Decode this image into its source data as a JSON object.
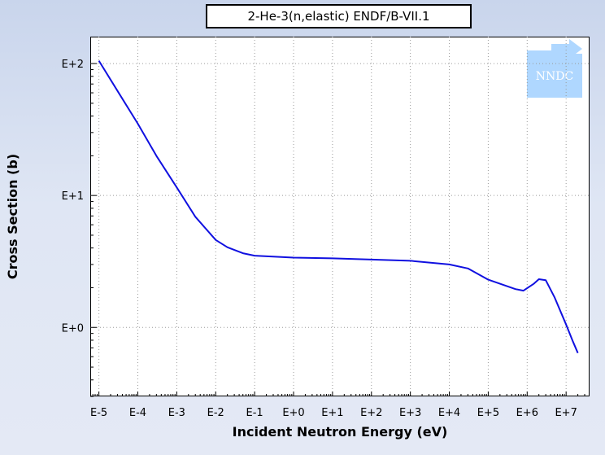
{
  "chart_data": {
    "type": "line",
    "title": "2-He-3(n,elastic) ENDF/B-VII.1",
    "xlabel": "Incident Neutron Energy (eV)",
    "ylabel": "Cross Section (b)",
    "x_scale": "log",
    "y_scale": "log",
    "xlim": [
      6e-06,
      40000000.0
    ],
    "ylim": [
      0.3,
      160
    ],
    "grid": true,
    "x_ticks": [
      {
        "value": 1e-05,
        "label": "E-5"
      },
      {
        "value": 0.0001,
        "label": "E-4"
      },
      {
        "value": 0.001,
        "label": "E-3"
      },
      {
        "value": 0.01,
        "label": "E-2"
      },
      {
        "value": 0.1,
        "label": "E-1"
      },
      {
        "value": 1.0,
        "label": "E+0"
      },
      {
        "value": 10.0,
        "label": "E+1"
      },
      {
        "value": 100.0,
        "label": "E+2"
      },
      {
        "value": 1000.0,
        "label": "E+3"
      },
      {
        "value": 10000.0,
        "label": "E+4"
      },
      {
        "value": 100000.0,
        "label": "E+5"
      },
      {
        "value": 1000000.0,
        "label": "E+6"
      },
      {
        "value": 10000000.0,
        "label": "E+7"
      }
    ],
    "y_ticks": [
      {
        "value": 1,
        "label": "E+0"
      },
      {
        "value": 10,
        "label": "E+1"
      },
      {
        "value": 100,
        "label": "E+2"
      }
    ],
    "series": [
      {
        "color": "#1010e0",
        "x": [
          1e-05,
          3e-05,
          0.0001,
          0.0003,
          0.001,
          0.003,
          0.01,
          0.02,
          0.05,
          0.1,
          1,
          10,
          100,
          1000,
          10000.0,
          30000.0,
          100000.0,
          500000.0,
          800000.0,
          1500000.0,
          2000000.0,
          3000000.0,
          5000000.0,
          10000000.0,
          15000000.0,
          20000000.0
        ],
        "y": [
          105,
          62,
          35,
          20,
          11.5,
          6.9,
          4.6,
          4.05,
          3.65,
          3.5,
          3.38,
          3.34,
          3.27,
          3.2,
          3.0,
          2.8,
          2.3,
          1.95,
          1.9,
          2.15,
          2.32,
          2.28,
          1.7,
          1.05,
          0.78,
          0.64
        ]
      }
    ]
  },
  "watermark": {
    "text": "NNDC",
    "color": "#1e90ff"
  }
}
